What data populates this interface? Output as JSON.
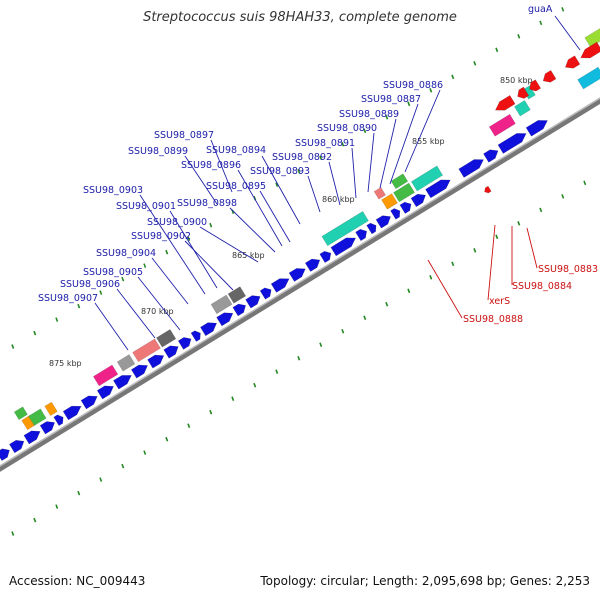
{
  "title": "Streptococcus suis 98HAH33, complete genome",
  "accession_line": "Accession: NC_009443",
  "topology_line": "Topology: circular; Length: 2,095,698 bp; Genes: 2,253",
  "tick_labels": [
    "850 kbp",
    "855 kbp",
    "860 kbp",
    "865 kbp",
    "870 kbp",
    "875 kbp"
  ],
  "forward_labels": [
    "guaA",
    "SSU98_0886",
    "SSU98_0887",
    "SSU98_0889",
    "SSU98_0890",
    "SSU98_0891",
    "SSU98_0892",
    "SSU98_0893",
    "SSU98_0894",
    "SSU98_0895",
    "SSU98_0896",
    "SSU98_0897",
    "SSU98_0898",
    "SSU98_0899",
    "SSU98_0900",
    "SSU98_0901",
    "SSU98_0902",
    "SSU98_0903",
    "SSU98_0904",
    "SSU98_0905",
    "SSU98_0906",
    "SSU98_0907"
  ],
  "reverse_labels": [
    "SSU98_0883",
    "SSU98_0884",
    "xerS",
    "SSU98_0888"
  ],
  "colors": {
    "forward_gene": "#1010dd",
    "reverse_gene": "#ee1111",
    "forward_label": "#2020aa",
    "reverse_label": "#cc1111",
    "backbone": "#888888",
    "tick_mark": "#228822",
    "teal": "#20d0b0",
    "pink": "#ee2288",
    "salmon": "#ee7777",
    "gray": "#999999",
    "darkgray": "#666666",
    "green": "#44bb44",
    "orange": "#ff9900",
    "lime": "#99dd33",
    "cyan": "#11bbdd"
  }
}
